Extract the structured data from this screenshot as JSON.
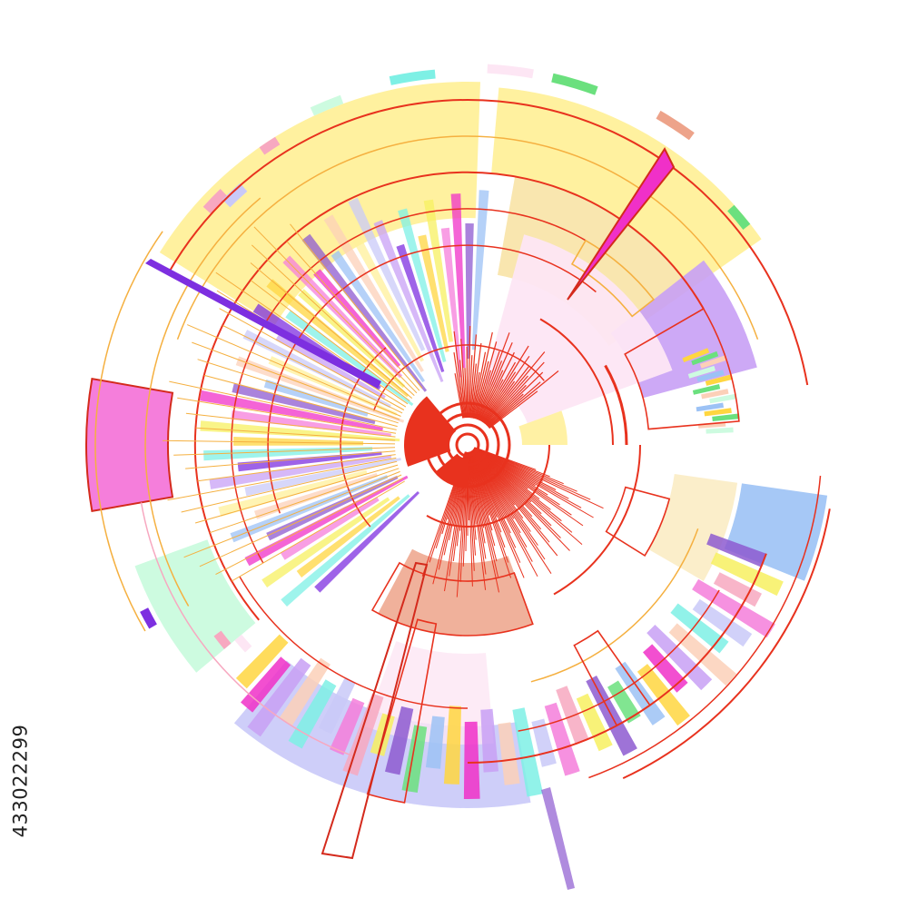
{
  "stock_id": "433022299",
  "palette": {
    "red": "#e8321e",
    "dark_red": "#d42a1c",
    "pale_yellow": "#fff09a",
    "tan": "#f8e3a6",
    "light_pink": "#fde6f4",
    "pink": "#f57edb",
    "magenta": "#f030c8",
    "lilac": "#c8a0f5",
    "periwinkle": "#c9c9f8",
    "purple": "#8d5ad0",
    "violet": "#7d2fe0",
    "sky_blue": "#9cc2f5",
    "cyan": "#7ef0e5",
    "mint": "#cdfbe0",
    "green": "#6be07e",
    "gold": "#ffd640",
    "orange": "#ffb070",
    "salmon": "#eda38a",
    "yellow": "#f7f060",
    "peach": "#fcd0b8",
    "rose": "#f7a8c0",
    "orange_outline": "#f5b040"
  }
}
